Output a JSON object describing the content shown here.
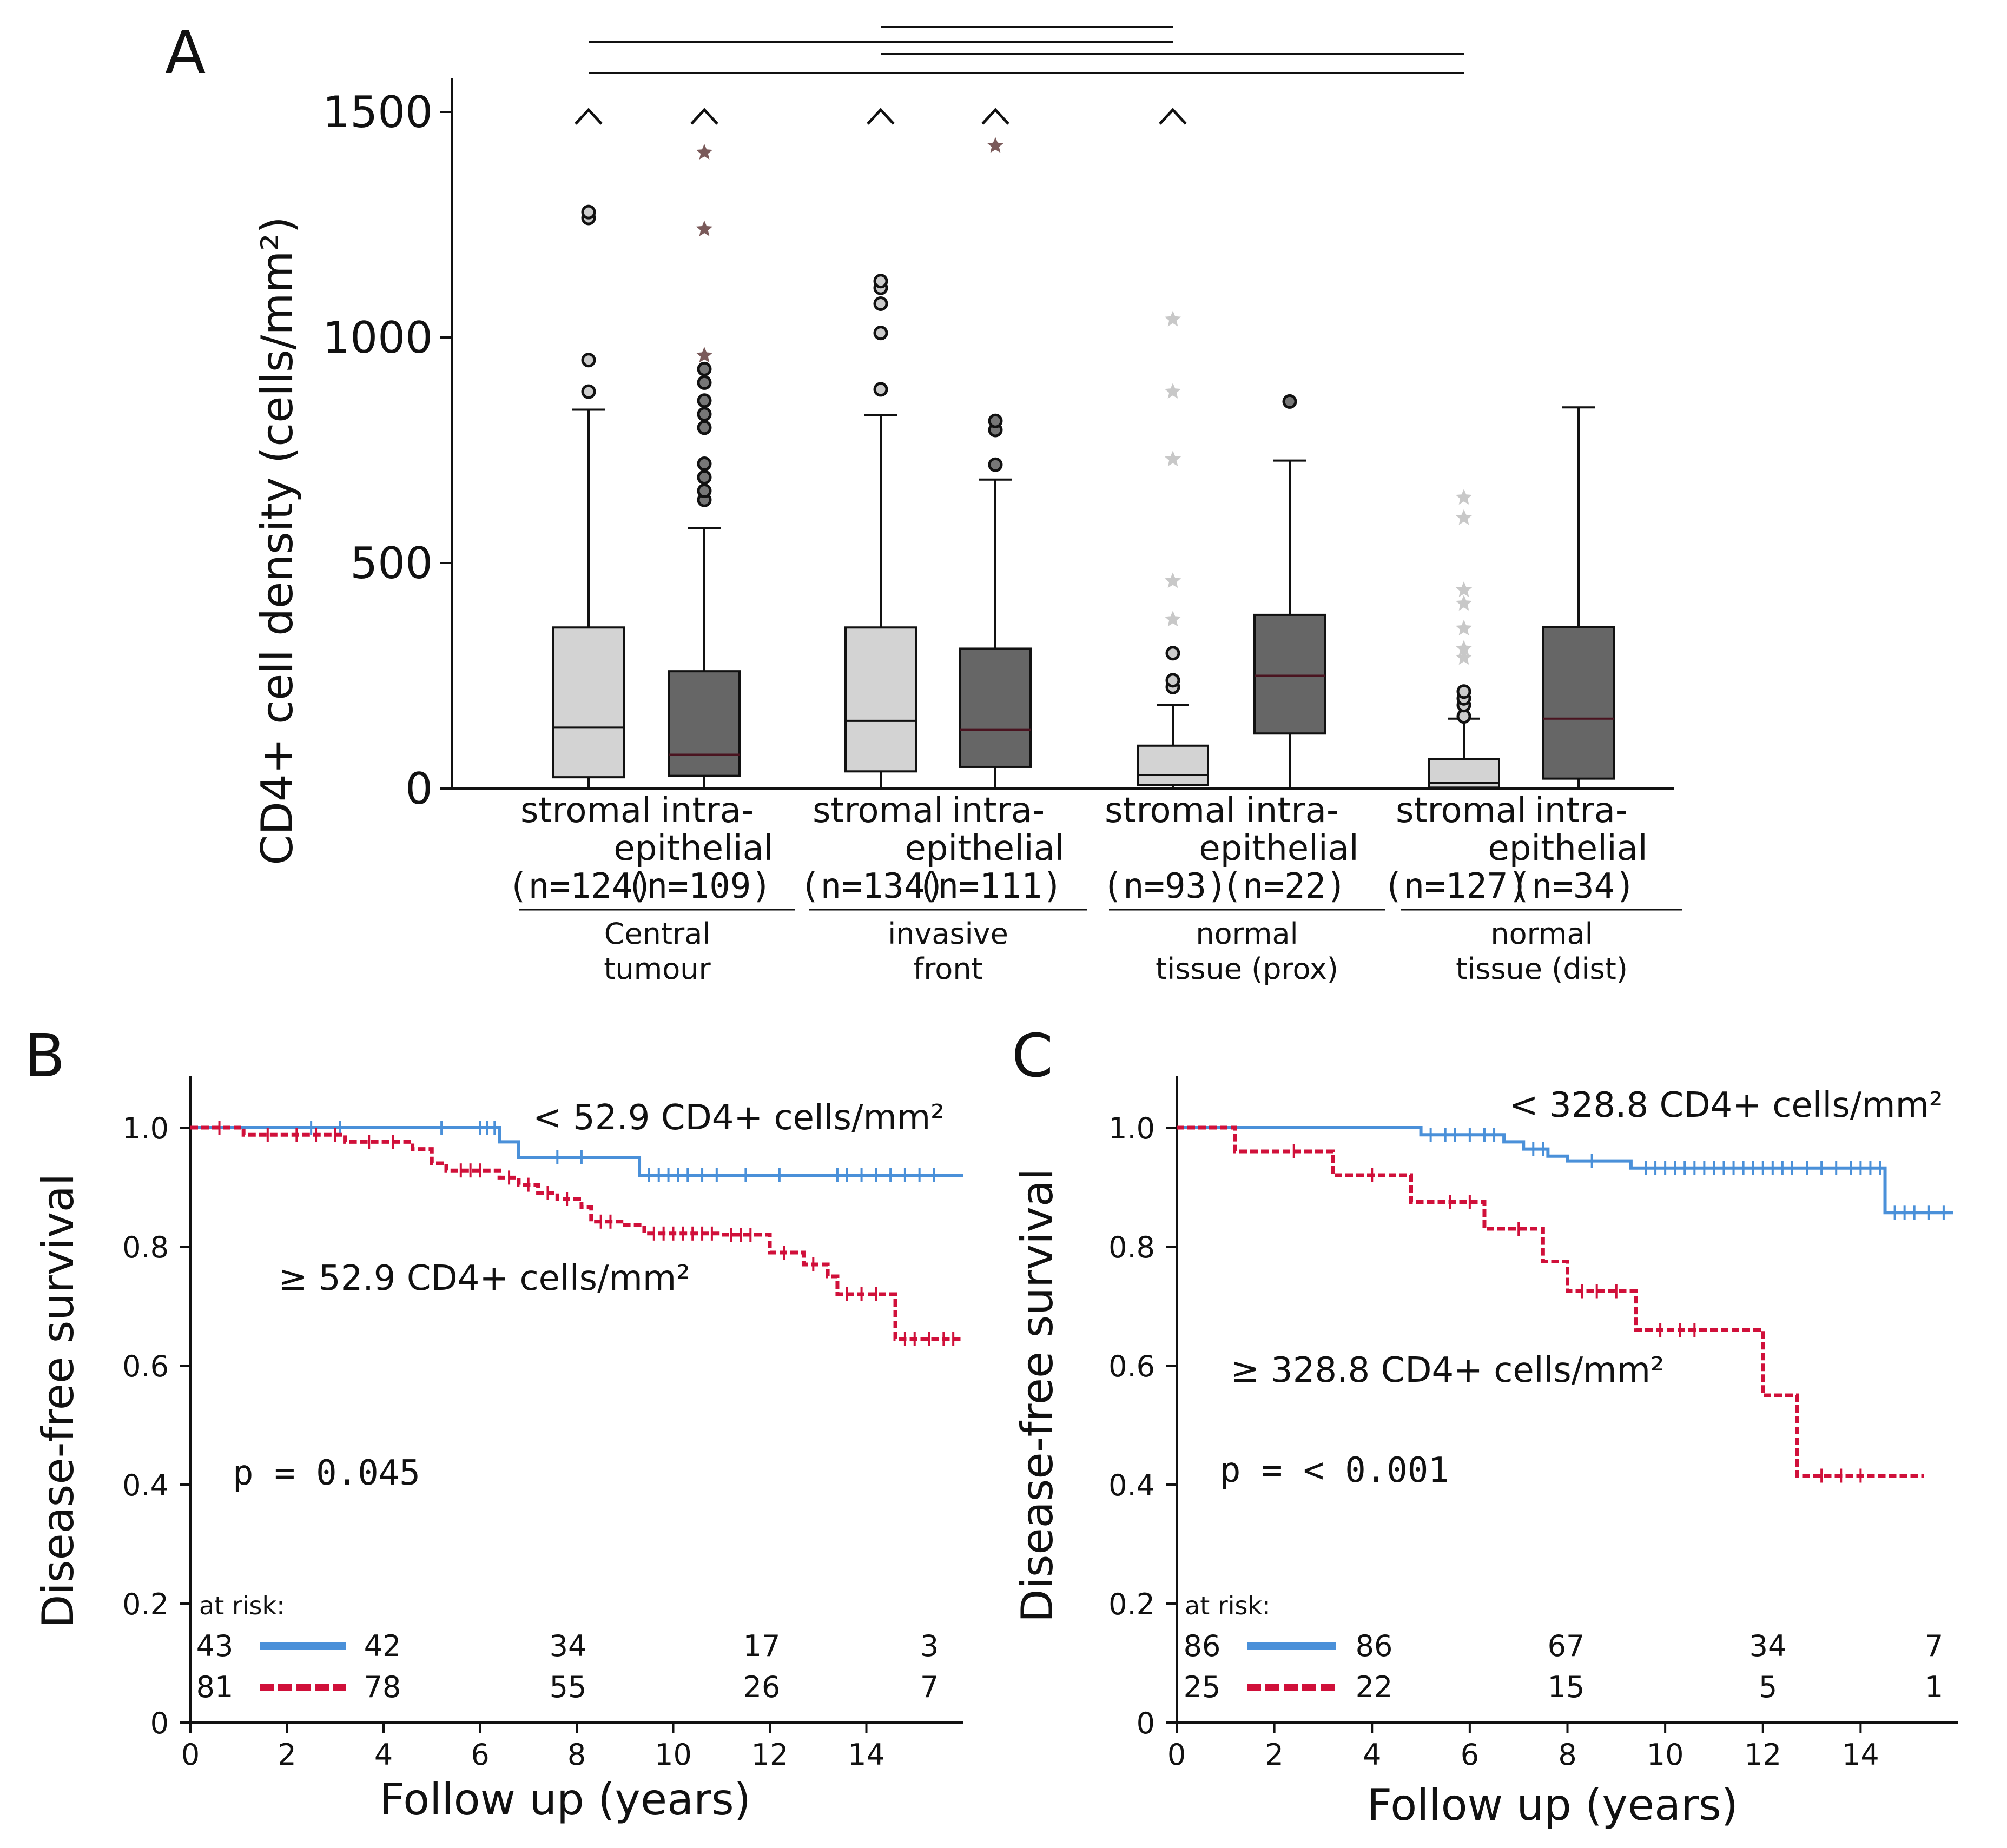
{
  "chart_data": [
    {
      "type": "box",
      "panel": "A",
      "ylabel": "CD4+ cell density (cells/mm²)",
      "ylim": [
        0,
        1600
      ],
      "yticks": [
        0,
        500,
        1000,
        1500
      ],
      "colors": {
        "light": "#d3d3d3",
        "dark": "#666666",
        "median_dark": "#4a1420",
        "outlier": "#111111",
        "star_dark": "#7a5a5a",
        "star_light": "#c8c8c8"
      },
      "boxes": [
        {
          "label": "stromal",
          "n_label": "(n=124)",
          "fill": "light",
          "whisker_low": 0,
          "q1": 25,
          "median": 135,
          "q3": 357,
          "whisker_high": 840,
          "outliers": [
            880,
            950,
            1265,
            1278
          ],
          "extremes": [],
          "caret": true
        },
        {
          "label": "intra-epithelial",
          "label_lines": [
            "intra-",
            "epithelial"
          ],
          "n_label": "(n=109)",
          "fill": "dark",
          "whisker_low": 0,
          "q1": 28,
          "median": 75,
          "q3": 260,
          "whisker_high": 577,
          "outliers": [
            640,
            660,
            690,
            720,
            800,
            830,
            860,
            900,
            930
          ],
          "extremes": [
            960,
            1240,
            1410
          ],
          "caret": true
        },
        {
          "label": "stromal",
          "n_label": "(n=134)",
          "fill": "light",
          "whisker_low": 0,
          "q1": 38,
          "median": 150,
          "q3": 357,
          "whisker_high": 828,
          "outliers": [
            885,
            1010,
            1075,
            1110,
            1125
          ],
          "extremes": [],
          "caret": true
        },
        {
          "label": "intra-epithelial",
          "label_lines": [
            "intra-",
            "epithelial"
          ],
          "n_label": "(n=111)",
          "fill": "dark",
          "whisker_low": 0,
          "q1": 48,
          "median": 130,
          "q3": 310,
          "whisker_high": 685,
          "outliers": [
            718,
            795,
            815
          ],
          "extremes": [
            1425
          ],
          "caret": true
        },
        {
          "label": "stromal",
          "n_label": "(n=93)",
          "fill": "light",
          "whisker_low": 0,
          "q1": 8,
          "median": 30,
          "q3": 95,
          "whisker_high": 185,
          "outliers": [
            225,
            240,
            300
          ],
          "extremes": [
            375,
            460,
            730,
            880,
            1040
          ],
          "caret": true
        },
        {
          "label": "intra-epithelial",
          "label_lines": [
            "intra-",
            "epithelial"
          ],
          "n_label": "(n=22)",
          "fill": "dark",
          "whisker_low": 0,
          "q1": 122,
          "median": 250,
          "q3": 385,
          "whisker_high": 727,
          "outliers": [
            858
          ],
          "extremes": [],
          "caret": false
        },
        {
          "label": "stromal",
          "n_label": "(n=127)",
          "fill": "light",
          "whisker_low": 0,
          "q1": 2,
          "median": 12,
          "q3": 65,
          "whisker_high": 155,
          "outliers": [
            160,
            185,
            200,
            215
          ],
          "extremes": [
            290,
            310,
            355,
            410,
            440,
            600,
            645
          ],
          "caret": false
        },
        {
          "label": "intra-epithelial",
          "label_lines": [
            "intra-",
            "epithelial"
          ],
          "n_label": "(n=34)",
          "fill": "dark",
          "whisker_low": 0,
          "q1": 22,
          "median": 155,
          "q3": 358,
          "whisker_high": 845,
          "outliers": [],
          "extremes": [],
          "caret": false
        }
      ],
      "groups": [
        {
          "lines": [
            "Central",
            "tumour"
          ]
        },
        {
          "lines": [
            "invasive",
            "front"
          ]
        },
        {
          "lines": [
            "normal",
            "tissue (prox)"
          ]
        },
        {
          "lines": [
            "normal",
            "tissue (dist)"
          ]
        }
      ],
      "significance_bars": [
        [
          2,
          4
        ],
        [
          0,
          4
        ],
        [
          2,
          6
        ],
        [
          0,
          6
        ]
      ]
    },
    {
      "type": "step",
      "panel": "B",
      "xlabel": "Follow up (years)",
      "ylabel": "Disease-free survival",
      "xlim": [
        0,
        16
      ],
      "ylim": [
        0,
        1.05
      ],
      "xticks": [
        0,
        2,
        4,
        6,
        8,
        10,
        12,
        14
      ],
      "yticks": [
        0,
        0.2,
        0.4,
        0.6,
        0.8,
        1.0
      ],
      "ytick_labels": [
        "0",
        "0.2",
        "0.4",
        "0.6",
        "0.8",
        "1.0"
      ],
      "series": [
        {
          "name": "< 52.9 CD4+ cells/mm²",
          "color": "#4a90d9",
          "dash": false,
          "steps": [
            [
              0,
              1.0
            ],
            [
              6.4,
              0.976
            ],
            [
              6.8,
              0.95
            ],
            [
              9.3,
              0.92
            ]
          ],
          "end": 16,
          "censor": [
            2.5,
            3.1,
            5.2,
            6.0,
            6.15,
            6.3,
            7.6,
            8.1,
            9.5,
            9.7,
            9.9,
            10.1,
            10.3,
            10.6,
            10.9,
            11.5,
            12.2,
            13.4,
            13.6,
            13.9,
            14.2,
            14.5,
            14.8,
            15.1,
            15.4
          ]
        },
        {
          "name": "≥ 52.9 CD4+ cells/mm²",
          "color": "#d0103a",
          "dash": true,
          "steps": [
            [
              0,
              1.0
            ],
            [
              1.1,
              0.988
            ],
            [
              3.2,
              0.976
            ],
            [
              4.6,
              0.964
            ],
            [
              5.0,
              0.94
            ],
            [
              5.3,
              0.928
            ],
            [
              6.4,
              0.916
            ],
            [
              6.8,
              0.904
            ],
            [
              7.2,
              0.89
            ],
            [
              7.6,
              0.88
            ],
            [
              8.1,
              0.866
            ],
            [
              8.3,
              0.842
            ],
            [
              9.0,
              0.836
            ],
            [
              9.4,
              0.822
            ],
            [
              11.0,
              0.82
            ],
            [
              12.0,
              0.79
            ],
            [
              12.7,
              0.77
            ],
            [
              13.2,
              0.75
            ],
            [
              13.4,
              0.72
            ],
            [
              14.6,
              0.645
            ]
          ],
          "end": 16,
          "censor": [
            0.6,
            1.6,
            2.2,
            2.6,
            3.0,
            3.7,
            4.2,
            5.6,
            5.8,
            6.0,
            6.6,
            7.0,
            7.4,
            7.8,
            8.5,
            8.7,
            9.6,
            9.8,
            10.0,
            10.2,
            10.4,
            10.6,
            10.8,
            11.2,
            11.4,
            11.6,
            12.3,
            12.9,
            13.6,
            13.9,
            14.2,
            14.8,
            15.0,
            15.3,
            15.6,
            15.8
          ]
        }
      ],
      "line_labels": [
        "< 52.9 CD4+ cells/mm²",
        "≥ 52.9 CD4+ cells/mm²"
      ],
      "p_value": "p = 0.045",
      "at_risk": {
        "title": "at risk:",
        "times": [
          0,
          4,
          8,
          12,
          15
        ],
        "rows": [
          {
            "counts": [
              "43",
              "42",
              "34",
              "17",
              "3"
            ]
          },
          {
            "counts": [
              "81",
              "78",
              "55",
              "26",
              "7"
            ]
          }
        ]
      }
    },
    {
      "type": "step",
      "panel": "C",
      "xlabel": "Follow up (years)",
      "ylabel": "Disease-free survival",
      "xlim": [
        0,
        16
      ],
      "ylim": [
        0,
        1.05
      ],
      "xticks": [
        0,
        2,
        4,
        6,
        8,
        10,
        12,
        14
      ],
      "yticks": [
        0,
        0.2,
        0.4,
        0.6,
        0.8,
        1.0
      ],
      "ytick_labels": [
        "0",
        "0.2",
        "0.4",
        "0.6",
        "0.8",
        "1.0"
      ],
      "series": [
        {
          "name": "< 328.8 CD4+ cells/mm²",
          "color": "#4a90d9",
          "dash": false,
          "steps": [
            [
              0,
              1.0
            ],
            [
              5.0,
              0.988
            ],
            [
              6.7,
              0.976
            ],
            [
              7.1,
              0.964
            ],
            [
              7.6,
              0.952
            ],
            [
              8.0,
              0.944
            ],
            [
              9.3,
              0.932
            ],
            [
              14.5,
              0.857
            ]
          ],
          "end": 15.9,
          "censor": [
            5.2,
            5.5,
            5.7,
            6.0,
            6.3,
            6.5,
            7.3,
            7.5,
            8.5,
            9.6,
            9.8,
            10.0,
            10.2,
            10.4,
            10.6,
            10.8,
            11.0,
            11.2,
            11.4,
            11.6,
            11.8,
            12.0,
            12.2,
            12.4,
            12.6,
            12.9,
            13.2,
            13.5,
            13.8,
            14.0,
            14.2,
            14.4,
            14.7,
            14.9,
            15.1,
            15.4,
            15.7
          ]
        },
        {
          "name": "≥ 328.8 CD4+ cells/mm²",
          "color": "#d0103a",
          "dash": true,
          "steps": [
            [
              0,
              1.0
            ],
            [
              1.2,
              0.96
            ],
            [
              3.2,
              0.92
            ],
            [
              4.8,
              0.875
            ],
            [
              6.3,
              0.83
            ],
            [
              7.5,
              0.775
            ],
            [
              8.0,
              0.725
            ],
            [
              9.4,
              0.66
            ],
            [
              12.0,
              0.55
            ],
            [
              12.7,
              0.415
            ]
          ],
          "end": 15.3,
          "censor": [
            2.4,
            4.0,
            5.6,
            6.0,
            7.0,
            8.3,
            8.6,
            9.0,
            9.9,
            10.3,
            10.6,
            13.2,
            13.6,
            14.0
          ]
        }
      ],
      "line_labels": [
        "< 328.8 CD4+ cells/mm²",
        "≥ 328.8 CD4+ cells/mm²"
      ],
      "p_value": "p = < 0.001",
      "at_risk": {
        "title": "at risk:",
        "times": [
          0,
          4,
          8,
          12,
          15
        ],
        "rows": [
          {
            "counts": [
              "86",
              "86",
              "67",
              "34",
              "7"
            ]
          },
          {
            "counts": [
              "25",
              "22",
              "15",
              "5",
              "1"
            ]
          }
        ]
      }
    }
  ],
  "panel_labels": {
    "a": "A",
    "b": "B",
    "c": "C"
  }
}
